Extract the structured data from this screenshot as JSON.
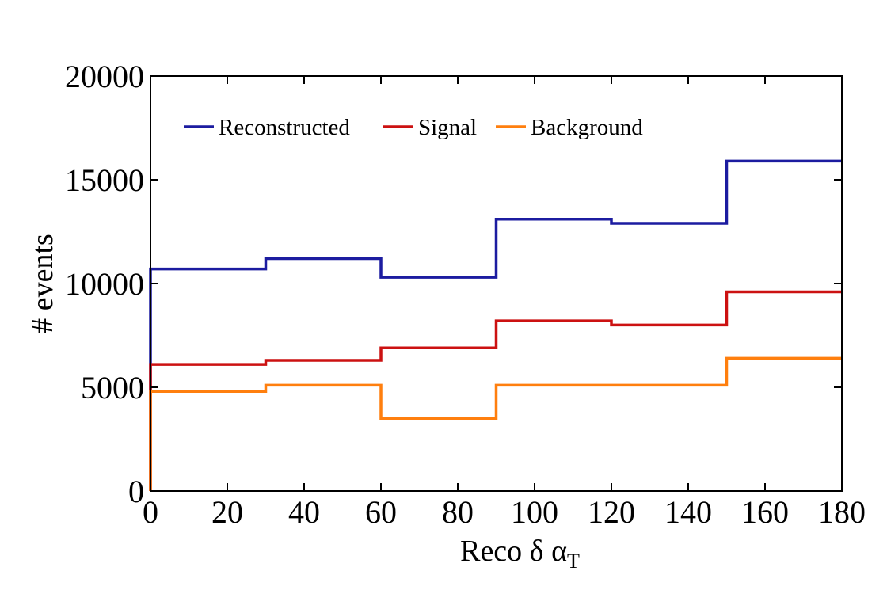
{
  "chart_data": {
    "type": "line",
    "title": "",
    "xlabel": "Reco δ α",
    "xlabel_subscript": "T",
    "ylabel": "# events",
    "xlim": [
      0,
      180
    ],
    "ylim": [
      0,
      20000
    ],
    "grid": false,
    "legend_position": "top-left",
    "xticks": [
      0,
      20,
      40,
      60,
      80,
      100,
      120,
      140,
      160,
      180
    ],
    "yticks": [
      0,
      5000,
      10000,
      15000,
      20000
    ],
    "bin_edges": [
      0,
      30,
      60,
      90,
      120,
      150,
      180
    ],
    "series": [
      {
        "name": "Reconstructed",
        "color": "#1c1ca0",
        "values": [
          10700,
          11200,
          10300,
          13100,
          12900,
          15900
        ]
      },
      {
        "name": "Signal",
        "color": "#cc1111",
        "values": [
          6100,
          6300,
          6900,
          8200,
          8000,
          9600
        ]
      },
      {
        "name": "Background",
        "color": "#ff7f0e",
        "values": [
          4800,
          5100,
          3500,
          5100,
          5100,
          6400
        ]
      }
    ]
  }
}
